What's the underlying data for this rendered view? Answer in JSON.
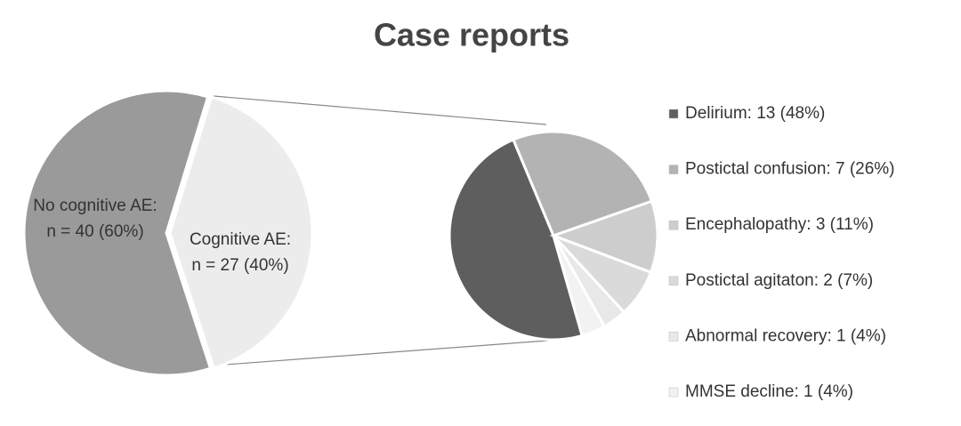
{
  "chart_data": [
    {
      "type": "pie",
      "title": "Case reports",
      "values": [
        40,
        27
      ],
      "value_labels": [
        [
          "No cognitive AE:",
          "n = 40 (60%)"
        ],
        [
          "Cognitive AE:",
          "n = 27 (40%)"
        ]
      ],
      "colors": [
        "#9a9a9a",
        "#ececec"
      ]
    },
    {
      "type": "pie",
      "categories": [
        "Delirium: 13 (48%)",
        "Postictal confusion: 7 (26%)",
        "Encephalopathy: 3 (11%)",
        "Postictal agitaton: 2 (7%)",
        "Abnormal recovery: 1 (4%)",
        "MMSE decline: 1 (4%)"
      ],
      "values": [
        13,
        7,
        3,
        2,
        1,
        1
      ],
      "colors": [
        "#5e5e5e",
        "#b3b3b3",
        "#cdcdcd",
        "#dadada",
        "#e8e8e8",
        "#f2f2f2"
      ]
    }
  ]
}
